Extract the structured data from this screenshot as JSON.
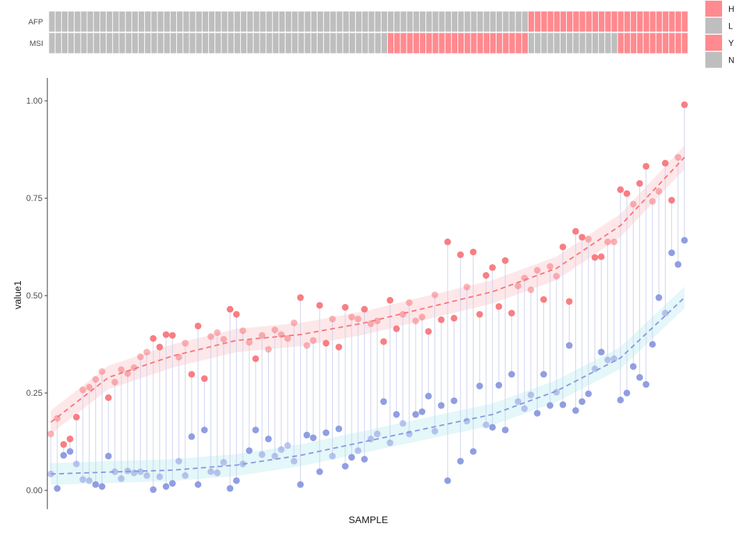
{
  "chart_data": {
    "type": "scatter",
    "xlabel": "SAMPLE",
    "ylabel": "value1",
    "ylim": [
      0,
      1.0
    ],
    "y_ticks": [
      "0.00",
      "0.25",
      "0.50",
      "0.75",
      "1.00"
    ],
    "grid": false,
    "n_samples": 100,
    "tracks": [
      {
        "label": "AFP",
        "segments": [
          {
            "value": "L",
            "count": 75
          },
          {
            "value": "H",
            "count": 25
          }
        ]
      },
      {
        "label": "MSI",
        "segments": [
          {
            "value": "N",
            "count": 53
          },
          {
            "value": "Y",
            "count": 22
          },
          {
            "value": "N",
            "count": 14
          },
          {
            "value": "Y",
            "count": 11
          }
        ]
      }
    ],
    "legend": {
      "position": "top-right",
      "entries": [
        {
          "label": "H",
          "color": "#ff8a8f"
        },
        {
          "label": "L",
          "color": "#bebebe"
        },
        {
          "label": "Y",
          "color": "#ff8a8f"
        },
        {
          "label": "N",
          "color": "#bebebe"
        }
      ]
    },
    "colors": {
      "series_a": "#f8777c",
      "series_b": "#8a99e0",
      "band_a": "#fde3e5",
      "band_b": "#dff6f8",
      "segment": "#cdd2ee",
      "track_red": "#ff8a8f",
      "track_grey": "#bebebe"
    },
    "series": [
      {
        "values": [
          0.145,
          0.185,
          0.118,
          0.132,
          0.188,
          0.258,
          0.265,
          0.285,
          0.305,
          0.238,
          0.278,
          0.31,
          0.3,
          0.315,
          0.343,
          0.355,
          0.39,
          0.368,
          0.4,
          0.398,
          0.342,
          0.378,
          0.298,
          0.422,
          0.287,
          0.395,
          0.405,
          0.388,
          0.465,
          0.452,
          0.41,
          0.38,
          0.338,
          0.398,
          0.362,
          0.412,
          0.4,
          0.39,
          0.43,
          0.495,
          0.372,
          0.385,
          0.475,
          0.378,
          0.44,
          0.368,
          0.47,
          0.445,
          0.44,
          0.465,
          0.428,
          0.435,
          0.382,
          0.488,
          0.415,
          0.452,
          0.482,
          0.435,
          0.445,
          0.408,
          0.502,
          0.438,
          0.638,
          0.442,
          0.605,
          0.522,
          0.612,
          0.452,
          0.552,
          0.572,
          0.472,
          0.59,
          0.455,
          0.525,
          0.545,
          0.515,
          0.565,
          0.49,
          0.575,
          0.55,
          0.625,
          0.485,
          0.665,
          0.65,
          0.645,
          0.598,
          0.6,
          0.638,
          0.638,
          0.772,
          0.762,
          0.735,
          0.788,
          0.832,
          0.742,
          0.768,
          0.84,
          0.745,
          0.855,
          0.99
        ]
      },
      {
        "values": [
          0.042,
          0.005,
          0.09,
          0.1,
          0.068,
          0.028,
          0.025,
          0.015,
          0.01,
          0.088,
          0.048,
          0.03,
          0.05,
          0.045,
          0.048,
          0.038,
          0.002,
          0.035,
          0.01,
          0.018,
          0.075,
          0.038,
          0.138,
          0.015,
          0.155,
          0.048,
          0.045,
          0.072,
          0.005,
          0.025,
          0.068,
          0.102,
          0.155,
          0.092,
          0.132,
          0.088,
          0.105,
          0.115,
          0.075,
          0.015,
          0.142,
          0.135,
          0.048,
          0.148,
          0.088,
          0.158,
          0.062,
          0.085,
          0.102,
          0.08,
          0.132,
          0.145,
          0.228,
          0.122,
          0.195,
          0.172,
          0.145,
          0.195,
          0.202,
          0.242,
          0.152,
          0.218,
          0.025,
          0.23,
          0.075,
          0.178,
          0.1,
          0.268,
          0.168,
          0.162,
          0.27,
          0.155,
          0.298,
          0.228,
          0.21,
          0.245,
          0.198,
          0.298,
          0.218,
          0.252,
          0.22,
          0.372,
          0.205,
          0.228,
          0.248,
          0.312,
          0.355,
          0.335,
          0.338,
          0.232,
          0.25,
          0.318,
          0.29,
          0.272,
          0.375,
          0.495,
          0.455,
          0.61,
          0.58,
          0.642
        ]
      }
    ],
    "trend": [
      {
        "x": [
          1,
          10,
          20,
          30,
          40,
          50,
          60,
          70,
          80,
          90,
          100
        ],
        "y": [
          0.175,
          0.29,
          0.345,
          0.385,
          0.4,
          0.43,
          0.47,
          0.51,
          0.57,
          0.68,
          0.855
        ],
        "band_halfwidth": 0.03
      },
      {
        "x": [
          1,
          10,
          20,
          30,
          40,
          50,
          60,
          70,
          80,
          90,
          100
        ],
        "y": [
          0.042,
          0.047,
          0.052,
          0.065,
          0.09,
          0.125,
          0.16,
          0.195,
          0.255,
          0.34,
          0.495
        ],
        "band_halfwidth": 0.028
      }
    ]
  }
}
